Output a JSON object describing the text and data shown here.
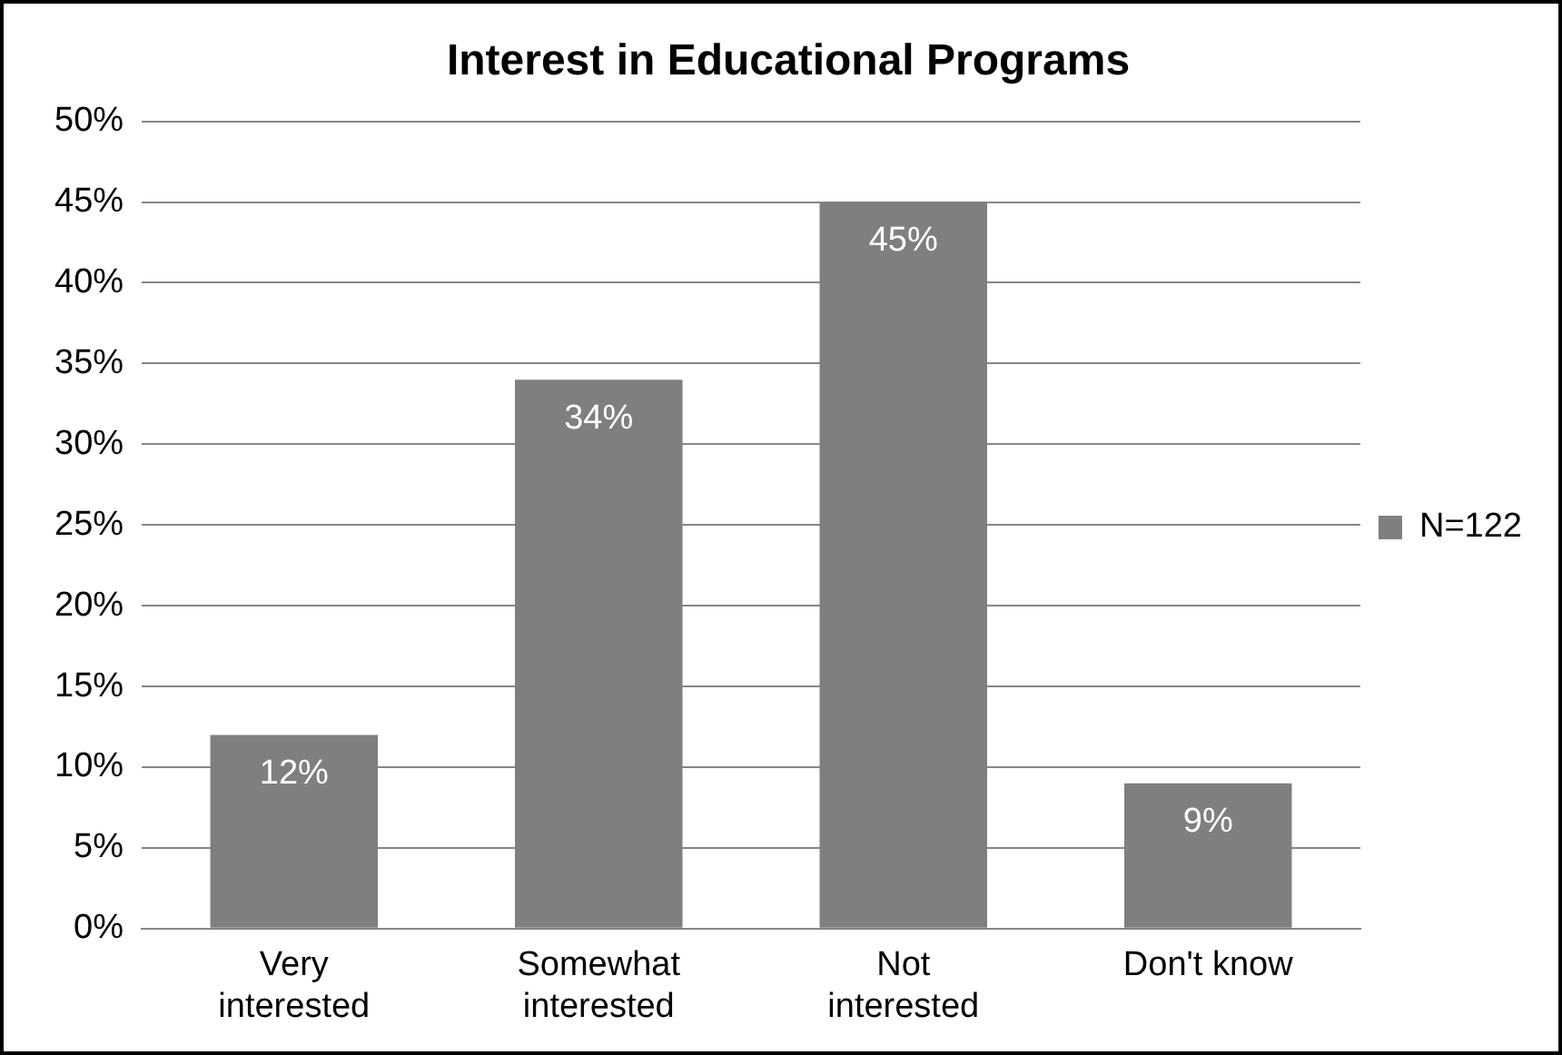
{
  "chart_data": {
    "type": "bar",
    "title": "Interest in Educational Programs",
    "categories": [
      "Very\ninterested",
      "Somewhat\ninterested",
      "Not\ninterested",
      "Don't know"
    ],
    "series": [
      {
        "name": "N=122",
        "color": "#7f7f7f",
        "values": [
          12,
          34,
          45,
          9
        ],
        "value_labels": [
          "12%",
          "34%",
          "45%",
          "9%"
        ]
      }
    ],
    "ylim": [
      0,
      50
    ],
    "yticks": [
      {
        "value": 0,
        "label": "0%"
      },
      {
        "value": 5,
        "label": "5%"
      },
      {
        "value": 10,
        "label": "10%"
      },
      {
        "value": 15,
        "label": "15%"
      },
      {
        "value": 20,
        "label": "20%"
      },
      {
        "value": 25,
        "label": "25%"
      },
      {
        "value": 30,
        "label": "30%"
      },
      {
        "value": 35,
        "label": "35%"
      },
      {
        "value": 40,
        "label": "40%"
      },
      {
        "value": 45,
        "label": "45%"
      },
      {
        "value": 50,
        "label": "50%"
      }
    ],
    "grid": "y",
    "legend": "right"
  }
}
